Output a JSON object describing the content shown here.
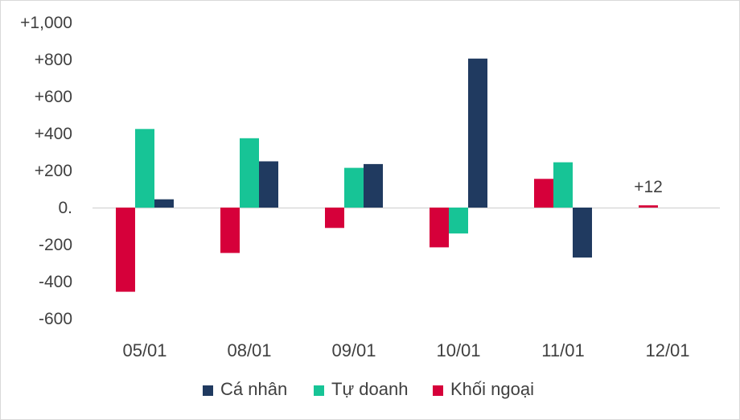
{
  "chart_data": {
    "type": "bar",
    "title": "",
    "xlabel": "",
    "ylabel": "",
    "categories": [
      "05/01",
      "08/01",
      "09/01",
      "10/01",
      "11/01",
      "12/01"
    ],
    "series": [
      {
        "name": "Khối ngoại",
        "color": "#d6003a",
        "values": [
          -455,
          -245,
          -110,
          -215,
          155,
          12
        ]
      },
      {
        "name": "Tự doanh",
        "color": "#17c496",
        "values": [
          425,
          375,
          215,
          -140,
          245,
          0
        ]
      },
      {
        "name": "Cá nhân",
        "color": "#203a60",
        "values": [
          45,
          250,
          235,
          805,
          -270,
          0
        ]
      }
    ],
    "ylim": [
      -600,
      1000
    ],
    "yticks": [
      {
        "value": 1000,
        "label": "+1,000"
      },
      {
        "value": 800,
        "label": "+800"
      },
      {
        "value": 600,
        "label": "+600"
      },
      {
        "value": 400,
        "label": "+400"
      },
      {
        "value": 200,
        "label": "+200"
      },
      {
        "value": 0,
        "label": "0."
      },
      {
        "value": -200,
        "label": "-200"
      },
      {
        "value": -400,
        "label": "-400"
      },
      {
        "value": -600,
        "label": "-600"
      }
    ],
    "legend_order": [
      "Cá nhân",
      "Tự doanh",
      "Khối ngoại"
    ],
    "legend_position": "bottom",
    "annotations": [
      {
        "category": "12/01",
        "series": "Khối ngoại",
        "text": "+12"
      }
    ]
  }
}
